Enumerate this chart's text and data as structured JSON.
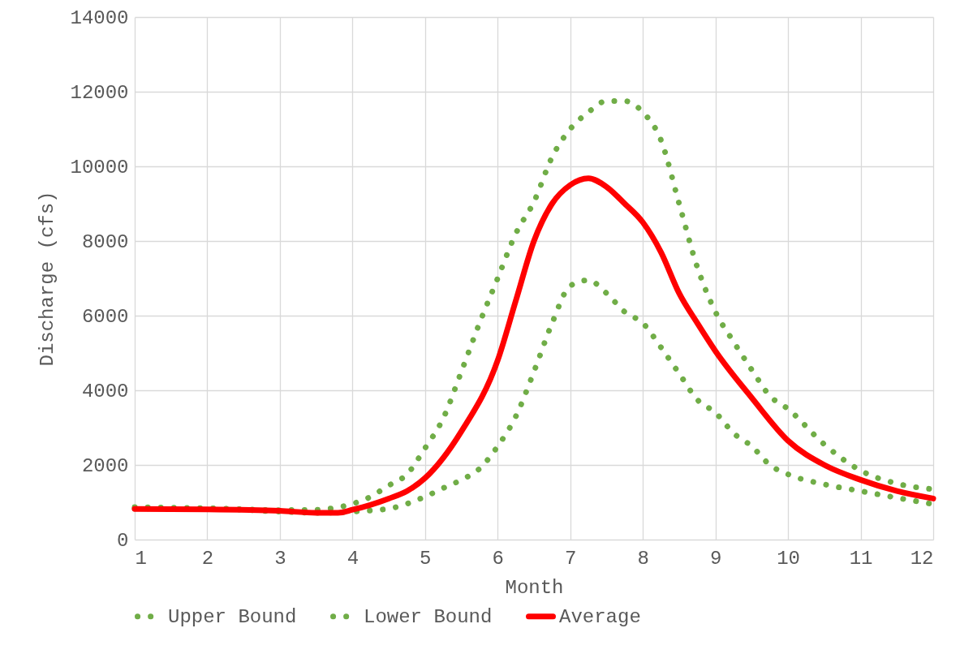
{
  "chart_data": {
    "type": "line",
    "xlabel": "Month",
    "ylabel": "Discharge (cfs)",
    "xlim": [
      1,
      12
    ],
    "xticks": [
      1,
      2,
      3,
      4,
      5,
      6,
      7,
      8,
      9,
      10,
      11,
      12
    ],
    "ylim": [
      0,
      14000
    ],
    "yticks": [
      0,
      2000,
      4000,
      6000,
      8000,
      10000,
      12000,
      14000
    ],
    "grid": true,
    "legend": "bottom",
    "marker": "none",
    "series": [
      {
        "name": "Upper Bound",
        "color": "#70ad47",
        "line_style": "dotted",
        "x": [
          1,
          2,
          3,
          3.5,
          4,
          4.2,
          4.5,
          4.75,
          5,
          5.25,
          5.5,
          5.75,
          6,
          6.25,
          6.5,
          6.75,
          7,
          7.25,
          7.5,
          7.75,
          8,
          8.25,
          8.5,
          8.75,
          9,
          9.25,
          9.5,
          9.75,
          10,
          10.5,
          11,
          11.5,
          12
        ],
        "values": [
          870,
          840,
          790,
          800,
          960,
          1100,
          1450,
          1750,
          2450,
          3250,
          4500,
          5800,
          7000,
          8200,
          9050,
          10250,
          11000,
          11450,
          11750,
          11750,
          11450,
          10700,
          9000,
          7300,
          6100,
          5300,
          4550,
          3850,
          3500,
          2550,
          1850,
          1500,
          1350
        ]
      },
      {
        "name": "Lower Bound",
        "color": "#70ad47",
        "line_style": "dotted",
        "x": [
          1,
          2,
          3,
          3.5,
          4,
          4.5,
          5,
          5.25,
          5.5,
          5.75,
          6,
          6.25,
          6.5,
          6.75,
          7,
          7.25,
          7.5,
          7.75,
          8,
          8.25,
          8.5,
          8.75,
          9,
          9.25,
          9.5,
          9.75,
          10,
          10.5,
          11,
          11.5,
          12
        ],
        "values": [
          830,
          830,
          750,
          720,
          750,
          830,
          1150,
          1380,
          1600,
          1900,
          2500,
          3300,
          4500,
          5800,
          6800,
          6950,
          6600,
          6100,
          5800,
          5150,
          4450,
          3750,
          3400,
          2850,
          2500,
          2000,
          1750,
          1480,
          1300,
          1120,
          950
        ]
      },
      {
        "name": "Average",
        "color": "#ff0000",
        "line_style": "solid",
        "x": [
          1,
          2,
          3,
          3.5,
          3.8,
          4,
          4.5,
          4.75,
          5,
          5.5,
          6,
          6.25,
          6.5,
          6.75,
          7,
          7.25,
          7.5,
          7.75,
          8,
          8.25,
          8.5,
          8.75,
          9,
          9.5,
          10,
          10.5,
          11,
          11.5,
          12
        ],
        "values": [
          820,
          810,
          770,
          720,
          720,
          800,
          1100,
          1300,
          1650,
          2900,
          4800,
          6400,
          8000,
          9000,
          9500,
          9680,
          9450,
          9000,
          8500,
          7700,
          6600,
          5800,
          5050,
          3800,
          2650,
          2000,
          1600,
          1300,
          1100
        ]
      }
    ]
  }
}
